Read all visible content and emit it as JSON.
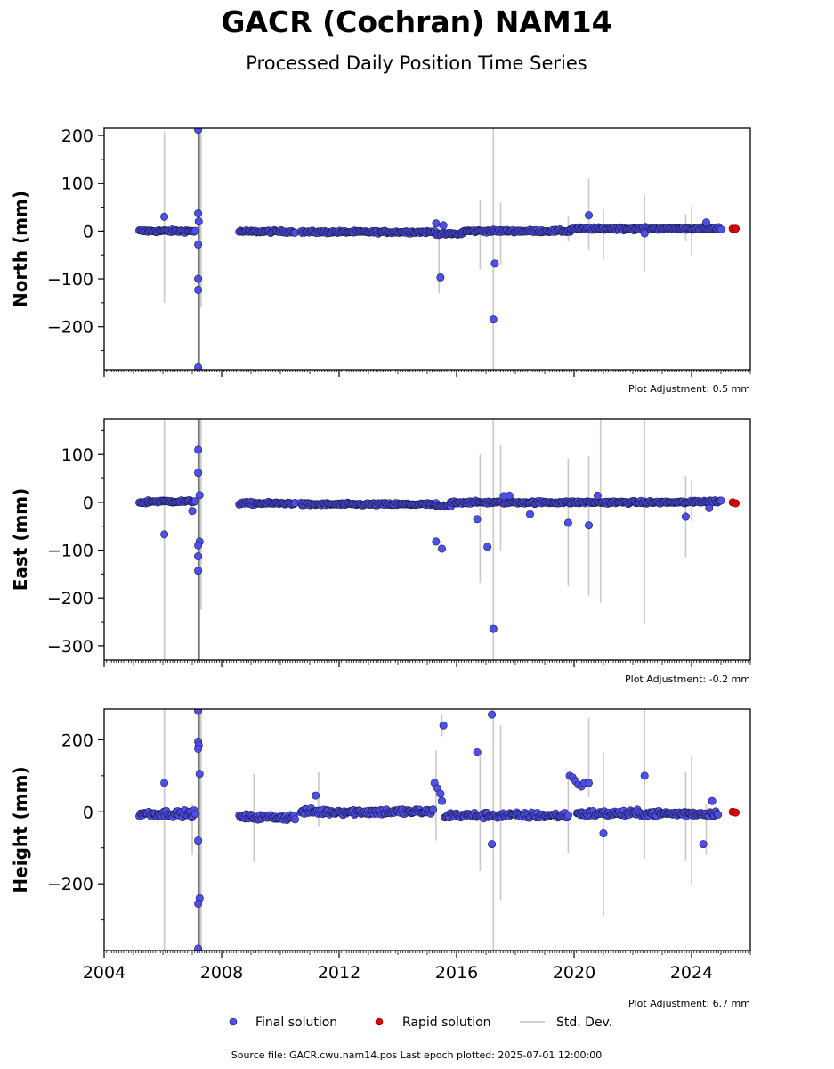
{
  "title": "GACR (Cochran) NAM14",
  "subtitle": "Processed Daily Position Time Series",
  "colors": {
    "final": "#4f4ff0",
    "final_edge": "#1a1a40",
    "rapid": "#e00000",
    "std": "#c0c0c0"
  },
  "legend": {
    "final": "Final solution",
    "rapid": "Rapid solution",
    "std": "Std. Dev."
  },
  "footer": "Source file: GACR.cwu.nam14.pos  Last epoch plotted: 2025-07-01 12:00:00",
  "chart_data": [
    {
      "type": "scatter",
      "ylabel": "North (mm)",
      "adjustment": "Plot Adjustment: 0.5 mm",
      "xlim": [
        2004,
        2026
      ],
      "ylim": [
        -290,
        215
      ],
      "yticks": [
        200,
        100,
        0,
        -100,
        -200
      ],
      "ytick_labels": [
        "200",
        "100",
        "0",
        "−100",
        "−200"
      ],
      "baseline": [
        [
          2005.2,
          2005.5,
          0
        ],
        [
          2005.5,
          2007.1,
          0
        ],
        [
          2008.6,
          2010.5,
          -1
        ],
        [
          2010.7,
          2015.3,
          -2
        ],
        [
          2015.3,
          2016.2,
          -6
        ],
        [
          2016.2,
          2019.9,
          0
        ],
        [
          2019.9,
          2024.1,
          5
        ],
        [
          2024.1,
          2025.0,
          5
        ]
      ],
      "outliers": [
        [
          2006.05,
          30
        ],
        [
          2007.2,
          212
        ],
        [
          2007.2,
          37
        ],
        [
          2007.22,
          20
        ],
        [
          2007.2,
          -28
        ],
        [
          2007.2,
          -100
        ],
        [
          2007.2,
          -123
        ],
        [
          2007.2,
          -285
        ],
        [
          2015.3,
          16
        ],
        [
          2015.45,
          -97
        ],
        [
          2015.55,
          12
        ],
        [
          2017.3,
          -68
        ],
        [
          2017.25,
          -185
        ],
        [
          2020.5,
          33
        ],
        [
          2022.4,
          -5
        ],
        [
          2024.5,
          18
        ]
      ],
      "rapid": [
        [
          2025.4,
          5
        ],
        [
          2025.5,
          5
        ]
      ],
      "std_bars": [
        [
          2006.05,
          -150,
          208
        ],
        [
          2007.2,
          -290,
          215
        ],
        [
          2007.25,
          -290,
          215
        ],
        [
          2007.3,
          -160,
          215
        ],
        [
          2015.4,
          -130,
          20
        ],
        [
          2016.8,
          -80,
          65
        ],
        [
          2017.25,
          -290,
          215
        ],
        [
          2017.5,
          -70,
          60
        ],
        [
          2019.8,
          -20,
          30
        ],
        [
          2020.5,
          -40,
          110
        ],
        [
          2021.0,
          -60,
          45
        ],
        [
          2022.4,
          -85,
          75
        ],
        [
          2023.8,
          -20,
          35
        ],
        [
          2024.0,
          -50,
          52
        ]
      ]
    },
    {
      "type": "scatter",
      "ylabel": "East (mm)",
      "adjustment": "Plot Adjustment: -0.2 mm",
      "xlim": [
        2004,
        2026
      ],
      "ylim": [
        -330,
        175
      ],
      "yticks": [
        100,
        0,
        -100,
        -200,
        -300
      ],
      "ytick_labels": [
        "100",
        "0",
        "−100",
        "−200",
        "−300"
      ],
      "baseline": [
        [
          2005.2,
          2005.5,
          0
        ],
        [
          2005.5,
          2007.1,
          2
        ],
        [
          2008.6,
          2010.5,
          -2
        ],
        [
          2010.7,
          2015.3,
          -4
        ],
        [
          2015.3,
          2015.8,
          -8
        ],
        [
          2015.8,
          2019.9,
          0
        ],
        [
          2019.9,
          2024.1,
          0
        ],
        [
          2024.1,
          2025.0,
          2
        ]
      ],
      "outliers": [
        [
          2006.05,
          -67
        ],
        [
          2007.0,
          -18
        ],
        [
          2007.2,
          110
        ],
        [
          2007.2,
          62
        ],
        [
          2007.25,
          15
        ],
        [
          2007.25,
          -82
        ],
        [
          2007.2,
          -90
        ],
        [
          2007.2,
          -113
        ],
        [
          2007.2,
          -143
        ],
        [
          2015.3,
          -82
        ],
        [
          2015.5,
          -97
        ],
        [
          2016.7,
          -35
        ],
        [
          2017.05,
          -93
        ],
        [
          2017.25,
          -265
        ],
        [
          2017.6,
          13
        ],
        [
          2017.8,
          14
        ],
        [
          2018.5,
          -25
        ],
        [
          2019.8,
          -43
        ],
        [
          2020.5,
          -48
        ],
        [
          2020.8,
          14
        ],
        [
          2023.8,
          -30
        ],
        [
          2024.6,
          -12
        ]
      ],
      "rapid": [
        [
          2025.4,
          0
        ],
        [
          2025.5,
          -2
        ]
      ],
      "std_bars": [
        [
          2006.05,
          -330,
          175
        ],
        [
          2007.2,
          -330,
          175
        ],
        [
          2007.25,
          -330,
          175
        ],
        [
          2007.3,
          -225,
          175
        ],
        [
          2016.8,
          -170,
          100
        ],
        [
          2017.25,
          -330,
          175
        ],
        [
          2017.5,
          -100,
          120
        ],
        [
          2019.8,
          -175,
          92
        ],
        [
          2020.5,
          -195,
          97
        ],
        [
          2020.9,
          -210,
          175
        ],
        [
          2022.4,
          -255,
          175
        ],
        [
          2023.8,
          -115,
          55
        ],
        [
          2024.0,
          -40,
          45
        ]
      ]
    },
    {
      "type": "scatter",
      "ylabel": "Height (mm)",
      "adjustment": "Plot Adjustment: 6.7 mm",
      "xlim": [
        2004,
        2026
      ],
      "ylim": [
        -385,
        285
      ],
      "yticks": [
        200,
        0,
        -200
      ],
      "ytick_labels": [
        "200",
        "0",
        "−200"
      ],
      "baseline": [
        [
          2005.2,
          2007.1,
          -5
        ],
        [
          2008.6,
          2010.5,
          -15
        ],
        [
          2010.7,
          2015.2,
          0
        ],
        [
          2015.6,
          2019.8,
          -10
        ],
        [
          2020.1,
          2024.9,
          -5
        ]
      ],
      "outliers": [
        [
          2006.05,
          80
        ],
        [
          2007.2,
          280
        ],
        [
          2007.2,
          195
        ],
        [
          2007.22,
          185
        ],
        [
          2007.2,
          175
        ],
        [
          2007.25,
          105
        ],
        [
          2007.2,
          -80
        ],
        [
          2007.25,
          -240
        ],
        [
          2007.2,
          -255
        ],
        [
          2007.2,
          -380
        ],
        [
          2011.2,
          45
        ],
        [
          2015.25,
          80
        ],
        [
          2015.35,
          65
        ],
        [
          2015.45,
          50
        ],
        [
          2015.5,
          30
        ],
        [
          2015.55,
          240
        ],
        [
          2016.7,
          165
        ],
        [
          2017.2,
          270
        ],
        [
          2017.2,
          -90
        ],
        [
          2019.85,
          100
        ],
        [
          2019.95,
          95
        ],
        [
          2020.05,
          85
        ],
        [
          2020.15,
          75
        ],
        [
          2020.25,
          70
        ],
        [
          2020.35,
          80
        ],
        [
          2020.5,
          80
        ],
        [
          2021.0,
          -60
        ],
        [
          2022.4,
          100
        ],
        [
          2024.4,
          -90
        ],
        [
          2024.7,
          30
        ]
      ],
      "rapid": [
        [
          2025.4,
          0
        ],
        [
          2025.5,
          -2
        ]
      ],
      "std_bars": [
        [
          2006.05,
          -385,
          285
        ],
        [
          2007.0,
          -120,
          20
        ],
        [
          2007.2,
          -385,
          285
        ],
        [
          2007.25,
          -385,
          285
        ],
        [
          2007.3,
          -385,
          285
        ],
        [
          2009.1,
          -140,
          105
        ],
        [
          2011.3,
          -40,
          110
        ],
        [
          2015.3,
          -80,
          170
        ],
        [
          2015.5,
          210,
          270
        ],
        [
          2016.8,
          -165,
          165
        ],
        [
          2017.25,
          -385,
          285
        ],
        [
          2017.5,
          -245,
          240
        ],
        [
          2019.8,
          -115,
          90
        ],
        [
          2020.5,
          40,
          260
        ],
        [
          2021.0,
          -290,
          165
        ],
        [
          2022.4,
          -130,
          285
        ],
        [
          2023.8,
          -135,
          110
        ],
        [
          2024.0,
          -205,
          155
        ],
        [
          2024.5,
          -120,
          20
        ]
      ]
    }
  ],
  "xaxis": {
    "ticks": [
      2004,
      2008,
      2012,
      2016,
      2020,
      2024
    ],
    "tick_labels": [
      "2004",
      "2008",
      "2012",
      "2016",
      "2020",
      "2024"
    ]
  }
}
